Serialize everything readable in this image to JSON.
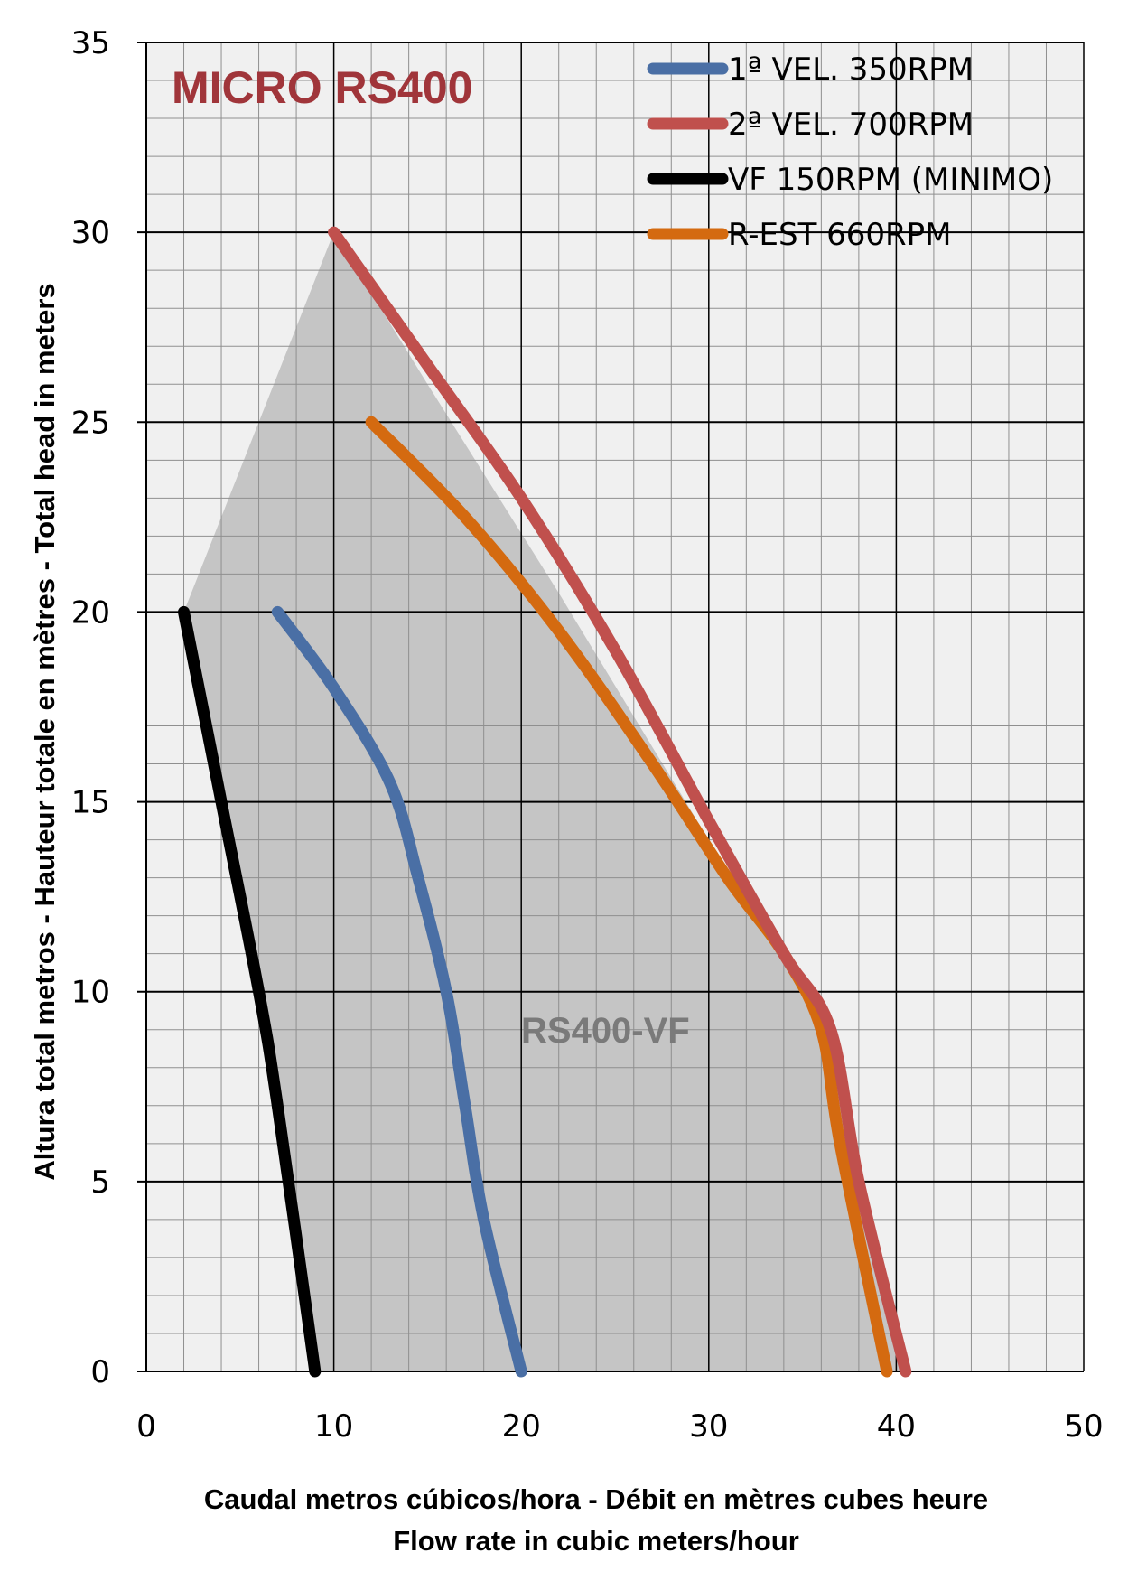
{
  "chart_data": {
    "type": "line",
    "title": "MICRO RS400",
    "title_color": "#A0353A",
    "annotation": "RS400-VF",
    "annotation_color": "#7A7A7A",
    "xlabel_line1": "Caudal metros cúbicos/hora - Débit en mètres cubes heure",
    "xlabel_line2": "Flow rate in cubic meters/hour",
    "ylabel": "Altura total metros - Hauteur totale en mètres - Total head in meters",
    "xlim": [
      0,
      50
    ],
    "ylim": [
      0,
      35
    ],
    "x_ticks": [
      "0",
      "10",
      "20",
      "30",
      "40",
      "50"
    ],
    "y_ticks": [
      "0",
      "5",
      "10",
      "15",
      "20",
      "25",
      "30",
      "35"
    ],
    "grid": "major and minor",
    "legend_position": "top-right",
    "region": {
      "name": "RS400-VF",
      "color": "#BDBDBD",
      "points": [
        [
          2,
          20
        ],
        [
          10,
          30
        ],
        [
          15,
          26
        ],
        [
          22,
          20.5
        ],
        [
          30,
          14
        ],
        [
          36.5,
          9
        ],
        [
          38.5,
          4
        ],
        [
          40.5,
          0
        ],
        [
          9,
          0
        ],
        [
          7,
          7.5
        ],
        [
          6,
          10
        ],
        [
          4,
          15
        ]
      ]
    },
    "series": [
      {
        "name": "1ª VEL. 350RPM",
        "color": "#4A6FA5",
        "x": [
          7,
          10,
          13,
          14.5,
          16,
          17,
          18,
          20
        ],
        "y": [
          20,
          18,
          15.5,
          13,
          10,
          7,
          4,
          0
        ]
      },
      {
        "name": "2ª VEL. 700RPM",
        "color": "#C0504D",
        "x": [
          10,
          15,
          20,
          25,
          30,
          34,
          36.5,
          38,
          40.5
        ],
        "y": [
          30,
          26.5,
          23,
          19,
          14.5,
          11,
          9,
          5,
          0
        ]
      },
      {
        "name": "VF 150RPM (MINIMO)",
        "color": "#000000",
        "x": [
          2,
          4,
          6,
          7,
          9
        ],
        "y": [
          20,
          15,
          10,
          7,
          0
        ]
      },
      {
        "name": "R-EST 660RPM",
        "color": "#D46A10",
        "x": [
          12,
          17,
          22,
          27,
          31,
          34,
          36,
          37,
          39.5
        ],
        "y": [
          25,
          22.5,
          19.5,
          16,
          13,
          11,
          9,
          6,
          0
        ]
      }
    ]
  }
}
